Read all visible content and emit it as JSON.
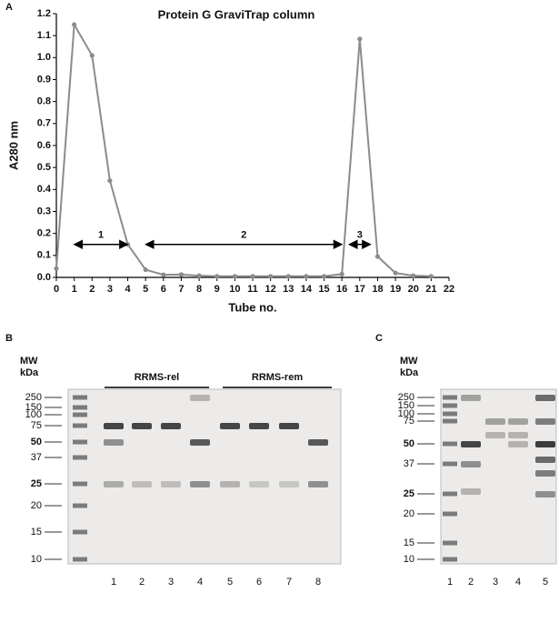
{
  "chart_data": {
    "type": "line",
    "panel_label": "A",
    "title": "Protein G GraviTrap column",
    "xlabel": "Tube no.",
    "ylabel": "A280 nm",
    "x": [
      0,
      1,
      2,
      3,
      4,
      5,
      6,
      7,
      8,
      9,
      10,
      11,
      12,
      13,
      14,
      15,
      16,
      17,
      18,
      19,
      20,
      21
    ],
    "series": [
      {
        "color": "#8c8c8c",
        "values": [
          0.04,
          1.15,
          1.01,
          0.44,
          0.15,
          0.035,
          0.012,
          0.013,
          0.008,
          0.005,
          0.005,
          0.005,
          0.005,
          0.005,
          0.005,
          0.005,
          0.015,
          1.085,
          0.095,
          0.02,
          0.008,
          0.005
        ]
      }
    ],
    "xlim": [
      0,
      22
    ],
    "xticks": [
      0,
      1,
      2,
      3,
      4,
      5,
      6,
      7,
      8,
      9,
      10,
      11,
      12,
      13,
      14,
      15,
      16,
      17,
      18,
      19,
      20,
      21,
      22
    ],
    "ylim": [
      0,
      1.2
    ],
    "yticks": [
      {
        "value": 0,
        "label": "0.0"
      },
      0.1,
      0.2,
      0.3,
      0.4,
      0.5,
      0.6,
      0.7,
      0.8,
      0.9,
      {
        "value": 1,
        "label": "1.0"
      },
      1.1,
      1.2
    ],
    "annotations": [
      {
        "text": "1",
        "x": [
          1,
          4
        ],
        "y": 0.15
      },
      {
        "text": "2",
        "x": [
          5,
          16
        ],
        "y": 0.15
      },
      {
        "text": "3",
        "x": [
          16.4,
          17.6
        ],
        "y": 0.15
      }
    ]
  },
  "gels": [
    {
      "panel_label": "B",
      "mw_label": "MW",
      "unit_label": "kDa",
      "markers": [
        250,
        150,
        100,
        75,
        50,
        37,
        25,
        20,
        15,
        10
      ],
      "groups": [
        {
          "label": "RRMS-rel"
        },
        {
          "label": "RRMS-rem"
        }
      ],
      "lanes": [
        1,
        2,
        3,
        4,
        5,
        6,
        7,
        8
      ]
    },
    {
      "panel_label": "C",
      "mw_label": "MW",
      "unit_label": "kDa",
      "markers": [
        250,
        150,
        100,
        75,
        50,
        37,
        25,
        20,
        15,
        10
      ],
      "lanes": [
        1,
        2,
        3,
        4,
        5
      ]
    }
  ]
}
